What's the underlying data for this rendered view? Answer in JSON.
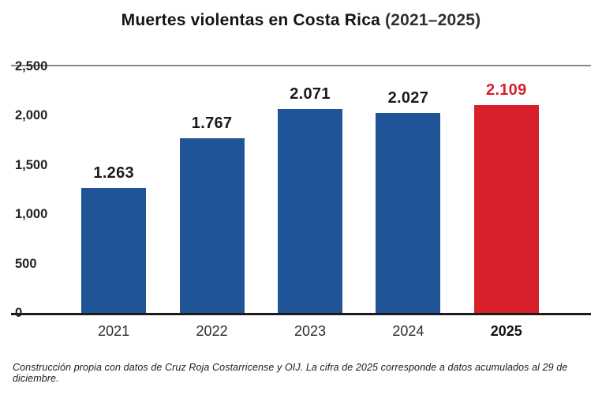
{
  "title": {
    "main": "Muertes violentas en Costa Rica",
    "range": "(2021–2025)"
  },
  "footer": "Construcción propia con datos de Cruz Roja Costarricense y OIJ. La cifra de 2025 corresponde a datos acumulados al 29 de diciembre.",
  "chart_data": {
    "type": "bar",
    "title": "Muertes violentas en Costa Rica (2021–2025)",
    "categories": [
      "2021",
      "2022",
      "2023",
      "2024",
      "2025"
    ],
    "values": [
      1263,
      1767,
      2071,
      2027,
      2109
    ],
    "value_labels": [
      "1.263",
      "1.767",
      "2.071",
      "2.027",
      "2.109"
    ],
    "bar_colors": [
      "#1f5496",
      "#1f5496",
      "#1f5496",
      "#1f5496",
      "#d8202a"
    ],
    "label_colors": [
      "#1a1a1a",
      "#1a1a1a",
      "#1a1a1a",
      "#1a1a1a",
      "#d8202a"
    ],
    "highlight_index": 4,
    "xlabel": "",
    "ylabel": "",
    "ylim": [
      0,
      2500
    ],
    "yticks": [
      2500,
      2000,
      1500,
      1000,
      500,
      0
    ],
    "ytick_labels": [
      "2,500",
      "2,000",
      "1,500",
      "1,000",
      "500",
      "0"
    ],
    "grid": "top rule and baseline only",
    "legend": "none"
  }
}
